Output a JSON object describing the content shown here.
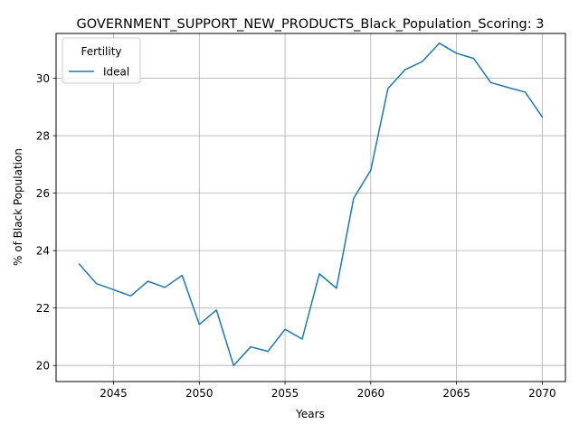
{
  "chart_data": {
    "type": "line",
    "title": "GOVERNMENT_SUPPORT_NEW_PRODUCTS_Black_Population_Scoring: 3",
    "xlabel": "Years",
    "ylabel": "% of Black Population",
    "xlim": [
      2041.65,
      2071.35
    ],
    "ylim": [
      19.44,
      31.56
    ],
    "x_ticks": [
      2045,
      2050,
      2055,
      2060,
      2065,
      2070
    ],
    "y_ticks": [
      20,
      22,
      24,
      26,
      28,
      30
    ],
    "grid": true,
    "legend": {
      "title": "Fertility",
      "placement": "top-left"
    },
    "series": [
      {
        "name": "Ideal",
        "color": "#1f77b4",
        "x": [
          2043,
          2044,
          2045,
          2046,
          2047,
          2048,
          2049,
          2050,
          2051,
          2052,
          2053,
          2054,
          2055,
          2056,
          2057,
          2058,
          2059,
          2060,
          2061,
          2062,
          2063,
          2064,
          2065,
          2066,
          2067,
          2068,
          2069,
          2070
        ],
        "y": [
          23.53,
          22.85,
          22.64,
          22.42,
          22.93,
          22.72,
          23.14,
          21.43,
          21.93,
          20.0,
          20.65,
          20.49,
          21.26,
          20.92,
          23.19,
          22.69,
          25.82,
          26.8,
          29.64,
          30.3,
          30.58,
          31.22,
          30.87,
          30.69,
          29.85,
          29.68,
          29.52,
          28.65
        ]
      }
    ]
  }
}
